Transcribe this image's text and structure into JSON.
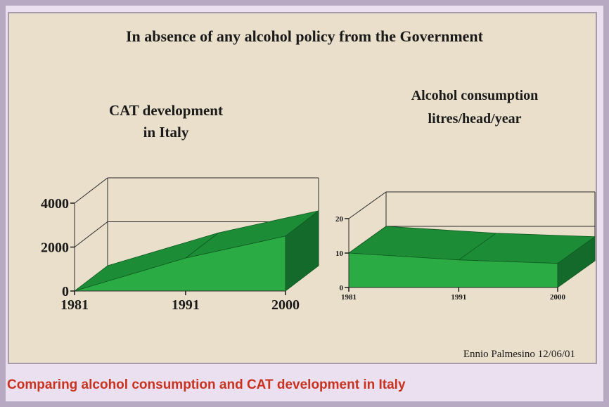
{
  "slide": {
    "title": "In absence of any alcohol policy from the Government",
    "author": "Ennio Palmesino 12/06/01"
  },
  "caption": "Comparing alcohol consumption and CAT development in Italy",
  "colors": {
    "front": "#2bab43",
    "top": "#1d8c36",
    "side": "#136a2a",
    "background": "#e9dfcb",
    "caption": "#c8321e"
  },
  "chart_data": [
    {
      "type": "area",
      "title_lines": [
        "CAT development",
        "in Italy"
      ],
      "x": [
        1981,
        1991,
        2000
      ],
      "values": [
        0,
        1500,
        2500
      ],
      "ylim": [
        0,
        4000
      ],
      "yticks": [
        "0",
        "2000",
        "4000"
      ],
      "xticks": [
        "1981",
        "1991",
        "2000"
      ]
    },
    {
      "type": "area",
      "title_lines": [
        "Alcohol consumption",
        "litres/head/year"
      ],
      "x": [
        1981,
        1991,
        2000
      ],
      "values": [
        10,
        8,
        7
      ],
      "ylim": [
        0,
        20
      ],
      "yticks": [
        "0",
        "10",
        "20"
      ],
      "xticks": [
        "1981",
        "1991",
        "2000"
      ]
    }
  ]
}
